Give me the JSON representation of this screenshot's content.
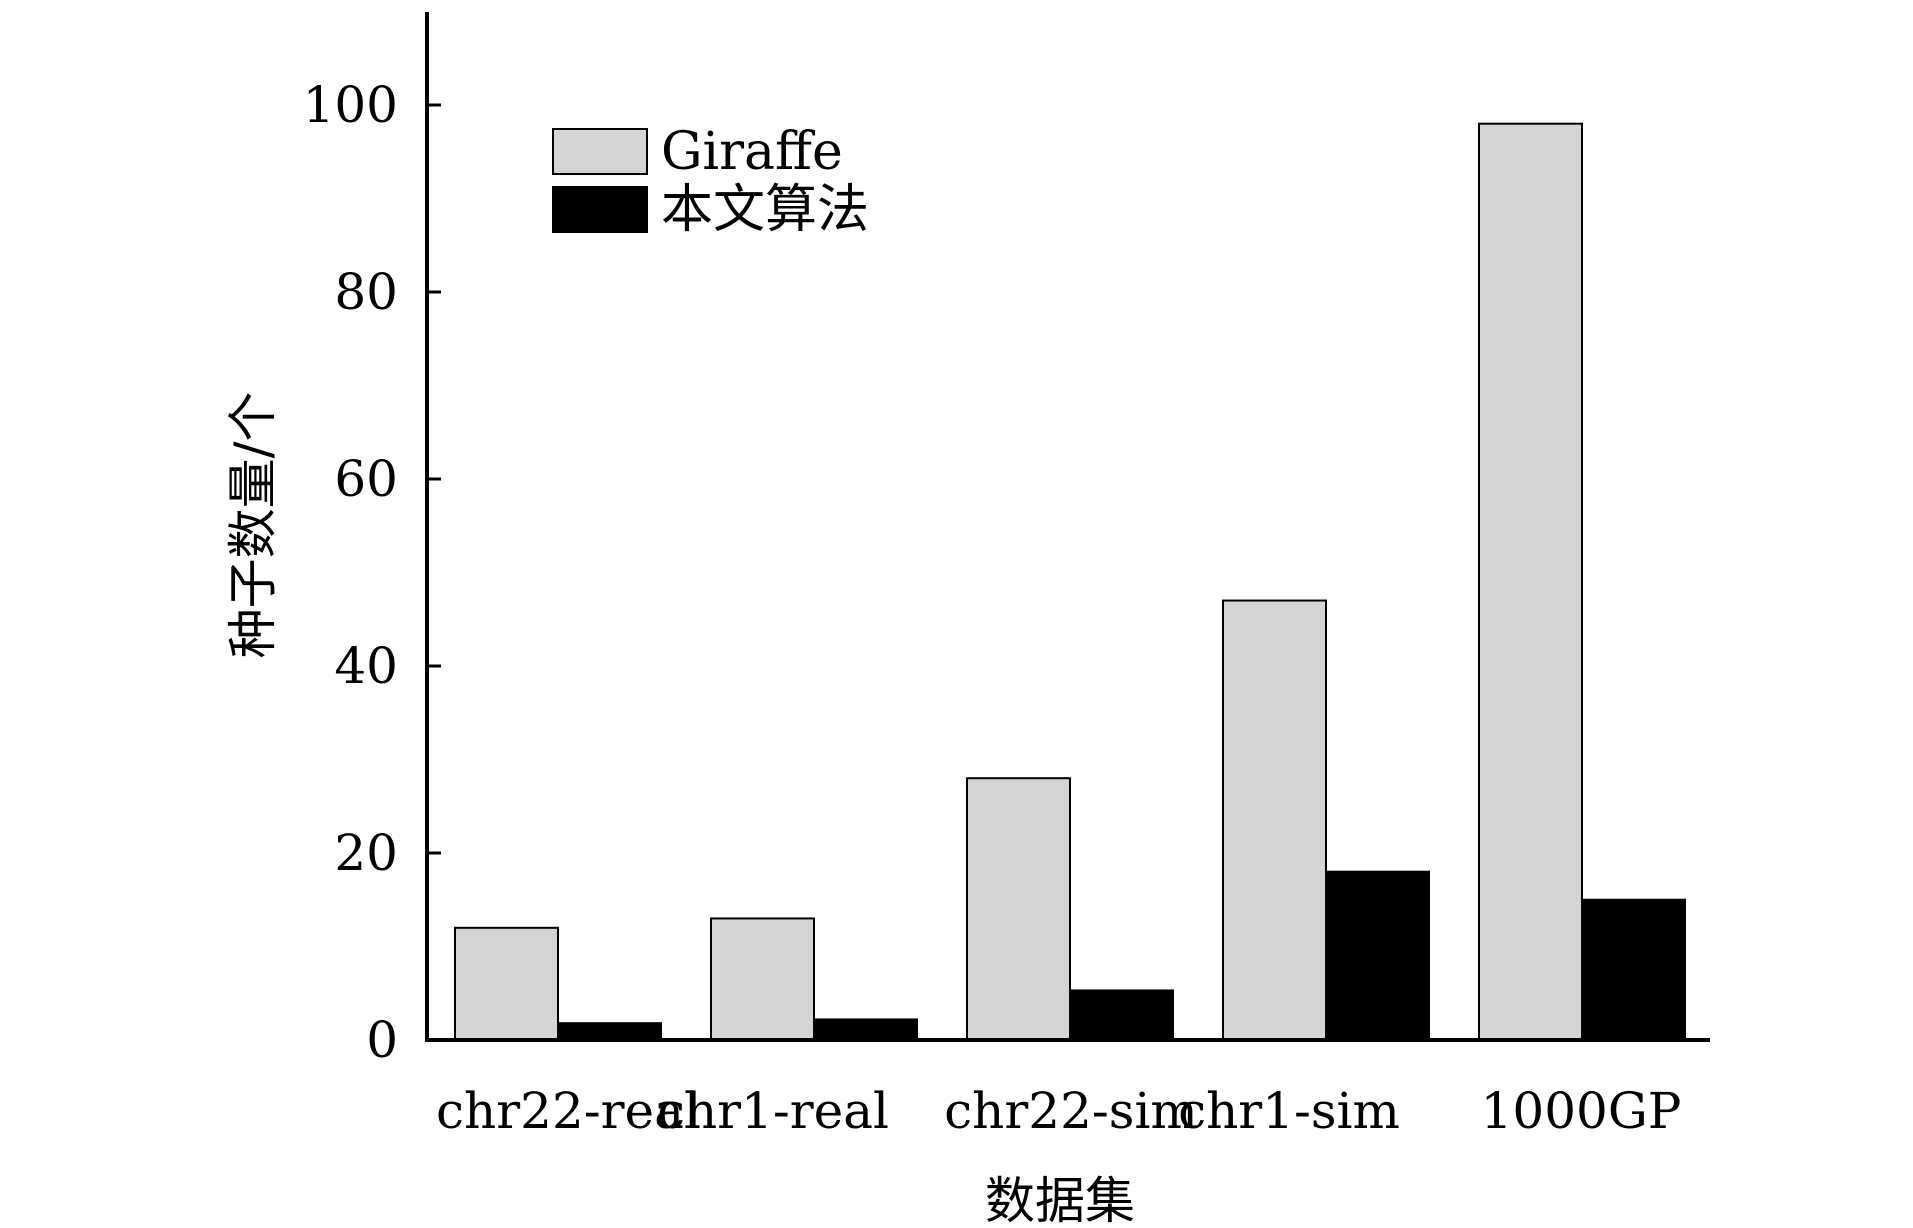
{
  "chart_data": {
    "type": "bar",
    "title": "",
    "xlabel": "数据集",
    "ylabel": "种子数量/个",
    "ylim": [
      0,
      110
    ],
    "yticks": [
      0,
      20,
      40,
      60,
      80,
      100
    ],
    "grid": false,
    "legend_position": "top-left",
    "categories": [
      "chr22-real",
      "chr1-real",
      "chr22-sim",
      "chr1-sim",
      "1000GP"
    ],
    "series": [
      {
        "name": "Giraffe",
        "color": "#d4d4d4",
        "values": [
          12,
          13,
          28,
          47,
          98
        ]
      },
      {
        "name": "本文算法",
        "color": "#000000",
        "values": [
          1.8,
          2.2,
          5.3,
          18,
          15
        ]
      }
    ]
  }
}
